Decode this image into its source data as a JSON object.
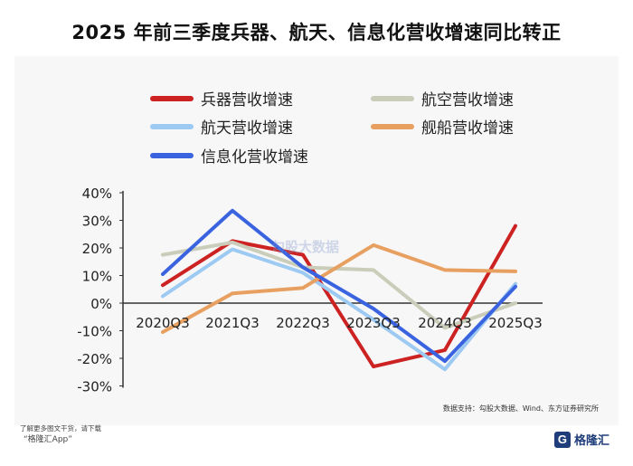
{
  "title": "2025 年前三季度兵器、航天、信息化营收增速同比转正",
  "source_text": "数据支持：勾股大数据、Wind、东方证券研究所",
  "footnote": {
    "line1": "了解更多图文干货，请下载",
    "line2": "“格隆汇App”"
  },
  "logo": {
    "mark": "G",
    "text": "格隆汇"
  },
  "watermark": "勾股大数据",
  "colors": {
    "bingqi": "#cc2222",
    "hangkong": "#c9cdb9",
    "hangtian": "#9dcaf2",
    "jianchuan": "#e8a060",
    "xinxihua": "#3a63e0"
  },
  "chart_data": {
    "type": "line",
    "title": "2025 年前三季度兵器、航天、信息化营收增速同比转正",
    "xlabel": "",
    "ylabel": "",
    "categories": [
      "2020Q3",
      "2021Q3",
      "2022Q3",
      "2023Q3",
      "2024Q3",
      "2025Q3"
    ],
    "ylim": [
      -30,
      40
    ],
    "yticks": [
      "40%",
      "30%",
      "20%",
      "10%",
      "0%",
      "-10%",
      "-20%",
      "-30%"
    ],
    "legend_position": "top",
    "grid": false,
    "series": [
      {
        "name": "兵器营收增速",
        "color": "#cc2222",
        "values": [
          6.5,
          22.5,
          17.5,
          -23,
          -17,
          28
        ]
      },
      {
        "name": "航空营收增速",
        "color": "#c9cdb9",
        "values": [
          17.5,
          22,
          13,
          12,
          -9,
          0
        ]
      },
      {
        "name": "航天营收增速",
        "color": "#9dcaf2",
        "values": [
          2.5,
          19.5,
          11,
          -6,
          -24,
          7
        ]
      },
      {
        "name": "舰船营收增速",
        "color": "#e8a060",
        "values": [
          -10.5,
          3.5,
          5.5,
          21,
          12,
          11.5
        ]
      },
      {
        "name": "信息化营收增速",
        "color": "#3a63e0",
        "values": [
          10.5,
          33.5,
          13,
          -2,
          -21,
          6
        ]
      }
    ]
  }
}
